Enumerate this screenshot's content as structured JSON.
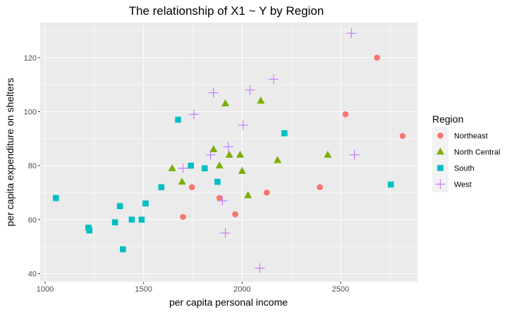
{
  "chart_data": {
    "type": "scatter",
    "title": "The relationship of X1 ~ Y by Region",
    "xlabel": "per capita personal income",
    "ylabel": "per capita expenditure on shelters",
    "xlim": [
      975,
      2890
    ],
    "ylim": [
      37,
      133
    ],
    "x_ticks": [
      1000,
      1500,
      2000,
      2500
    ],
    "x_tick_labels": [
      "1000",
      "1500",
      "2000",
      "2500"
    ],
    "y_ticks": [
      40,
      60,
      80,
      100,
      120
    ],
    "y_tick_labels": [
      "40",
      "60",
      "80",
      "100",
      "120"
    ],
    "grid": true,
    "legend_position": "right",
    "legend_title": "Region",
    "series": [
      {
        "name": "Northeast",
        "marker": "circle",
        "color": "#F8766D",
        "points": [
          [
            1700,
            61
          ],
          [
            1745,
            72
          ],
          [
            1885,
            68
          ],
          [
            1965,
            62
          ],
          [
            2125,
            70
          ],
          [
            2395,
            72
          ],
          [
            2525,
            99
          ],
          [
            2685,
            120
          ],
          [
            2815,
            91
          ]
        ]
      },
      {
        "name": "North Central",
        "marker": "triangle",
        "color": "#7CAE00",
        "points": [
          [
            1645,
            79
          ],
          [
            1695,
            74
          ],
          [
            1855,
            86
          ],
          [
            1885,
            80
          ],
          [
            1915,
            103
          ],
          [
            1935,
            84
          ],
          [
            1990,
            84
          ],
          [
            2000,
            78
          ],
          [
            2030,
            69
          ],
          [
            2095,
            104
          ],
          [
            2180,
            82
          ],
          [
            2435,
            84
          ]
        ]
      },
      {
        "name": "South",
        "marker": "square",
        "color": "#00BFC4",
        "points": [
          [
            1055,
            68
          ],
          [
            1220,
            57
          ],
          [
            1225,
            56
          ],
          [
            1355,
            59
          ],
          [
            1380,
            65
          ],
          [
            1395,
            49
          ],
          [
            1440,
            60
          ],
          [
            1490,
            60
          ],
          [
            1510,
            66
          ],
          [
            1590,
            72
          ],
          [
            1675,
            97
          ],
          [
            1740,
            80
          ],
          [
            1810,
            79
          ],
          [
            1875,
            74
          ],
          [
            2215,
            92
          ],
          [
            2755,
            73
          ]
        ]
      },
      {
        "name": "West",
        "marker": "cross",
        "color": "#C77CFF",
        "points": [
          [
            1700,
            79
          ],
          [
            1755,
            99
          ],
          [
            1840,
            84
          ],
          [
            1855,
            107
          ],
          [
            1900,
            67
          ],
          [
            1915,
            55
          ],
          [
            1930,
            87
          ],
          [
            2005,
            95
          ],
          [
            2040,
            108
          ],
          [
            2090,
            42
          ],
          [
            2160,
            112
          ],
          [
            2555,
            129
          ],
          [
            2570,
            84
          ]
        ]
      }
    ]
  }
}
